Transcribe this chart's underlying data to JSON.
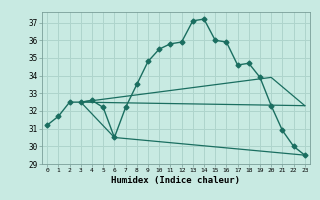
{
  "xlabel": "Humidex (Indice chaleur)",
  "background_color": "#c8eae2",
  "grid_color": "#aed4cc",
  "line_color": "#1a6e60",
  "xlim": [
    -0.5,
    23.5
  ],
  "ylim": [
    29,
    37.6
  ],
  "yticks": [
    29,
    30,
    31,
    32,
    33,
    34,
    35,
    36,
    37
  ],
  "xticks": [
    0,
    1,
    2,
    3,
    4,
    5,
    6,
    7,
    8,
    9,
    10,
    11,
    12,
    13,
    14,
    15,
    16,
    17,
    18,
    19,
    20,
    21,
    22,
    23
  ],
  "series": [
    {
      "x": [
        0,
        1,
        2,
        3,
        4,
        5,
        6,
        7,
        8,
        9,
        10,
        11,
        12,
        13,
        14,
        15,
        16,
        17,
        18,
        19,
        20,
        21,
        22,
        23
      ],
      "y": [
        31.2,
        31.7,
        32.5,
        32.5,
        32.6,
        32.2,
        30.5,
        32.2,
        33.5,
        34.8,
        35.5,
        35.8,
        35.9,
        37.1,
        37.2,
        36.0,
        35.9,
        34.6,
        34.7,
        33.9,
        32.3,
        30.9,
        30.0,
        29.5
      ],
      "marker": "D",
      "markersize": 2.5,
      "linewidth": 1.0,
      "linestyle": "-"
    },
    {
      "x": [
        3,
        6,
        23
      ],
      "y": [
        32.5,
        30.5,
        29.5
      ],
      "marker": null,
      "linewidth": 0.9,
      "linestyle": "-"
    },
    {
      "x": [
        3,
        20,
        23
      ],
      "y": [
        32.5,
        33.9,
        32.3
      ],
      "marker": null,
      "linewidth": 0.9,
      "linestyle": "-"
    },
    {
      "x": [
        3,
        23
      ],
      "y": [
        32.5,
        32.3
      ],
      "marker": null,
      "linewidth": 0.9,
      "linestyle": "-"
    }
  ]
}
